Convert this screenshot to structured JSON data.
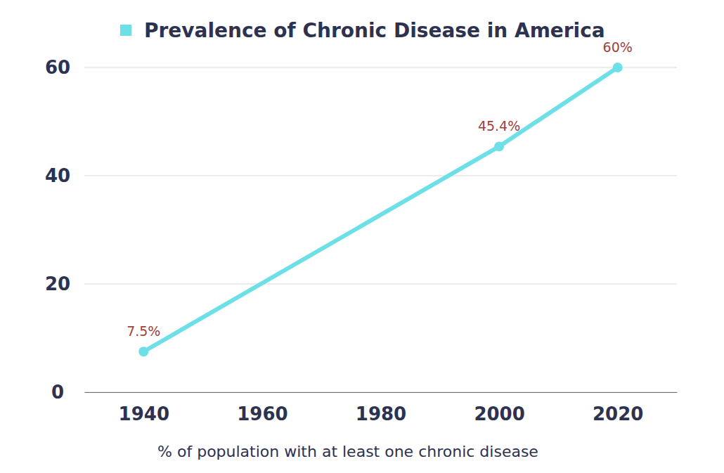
{
  "chart_data": {
    "type": "line",
    "x": [
      1940,
      2000,
      2020
    ],
    "series": [
      {
        "name": "Prevalence of Chronic Disease in America",
        "color": "#6ce0e6",
        "values": [
          7.5,
          45.4,
          60
        ],
        "value_labels": [
          "7.5%",
          "45.4%",
          "60%"
        ],
        "marker": "circle",
        "line_style": "solid"
      }
    ],
    "x_label": "% of population with at least one chronic disease",
    "xlim": [
      1930,
      2030
    ],
    "ylim": [
      0,
      60
    ],
    "xticks": [
      1940,
      1960,
      1980,
      2000,
      2020
    ],
    "yticks": [
      0,
      20,
      40,
      60
    ],
    "grid": true,
    "legend": "top",
    "data_labels": true
  }
}
